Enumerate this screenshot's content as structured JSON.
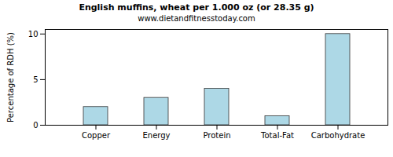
{
  "chart_data": {
    "type": "bar",
    "title": "English muffins, wheat per 1.000 oz (or 28.35 g)",
    "subtitle": "www.dietandfitnesstoday.com",
    "y_label": "Percentage of RDH (%)",
    "categories": [
      "Copper",
      "Energy",
      "Protein",
      "Total-Fat",
      "Carbohydrate"
    ],
    "values": [
      2,
      3,
      4,
      1,
      10
    ],
    "color": "#add8e6",
    "ylim": [
      0,
      10.5
    ],
    "yticks": [
      0,
      5,
      10
    ],
    "grid": false
  }
}
